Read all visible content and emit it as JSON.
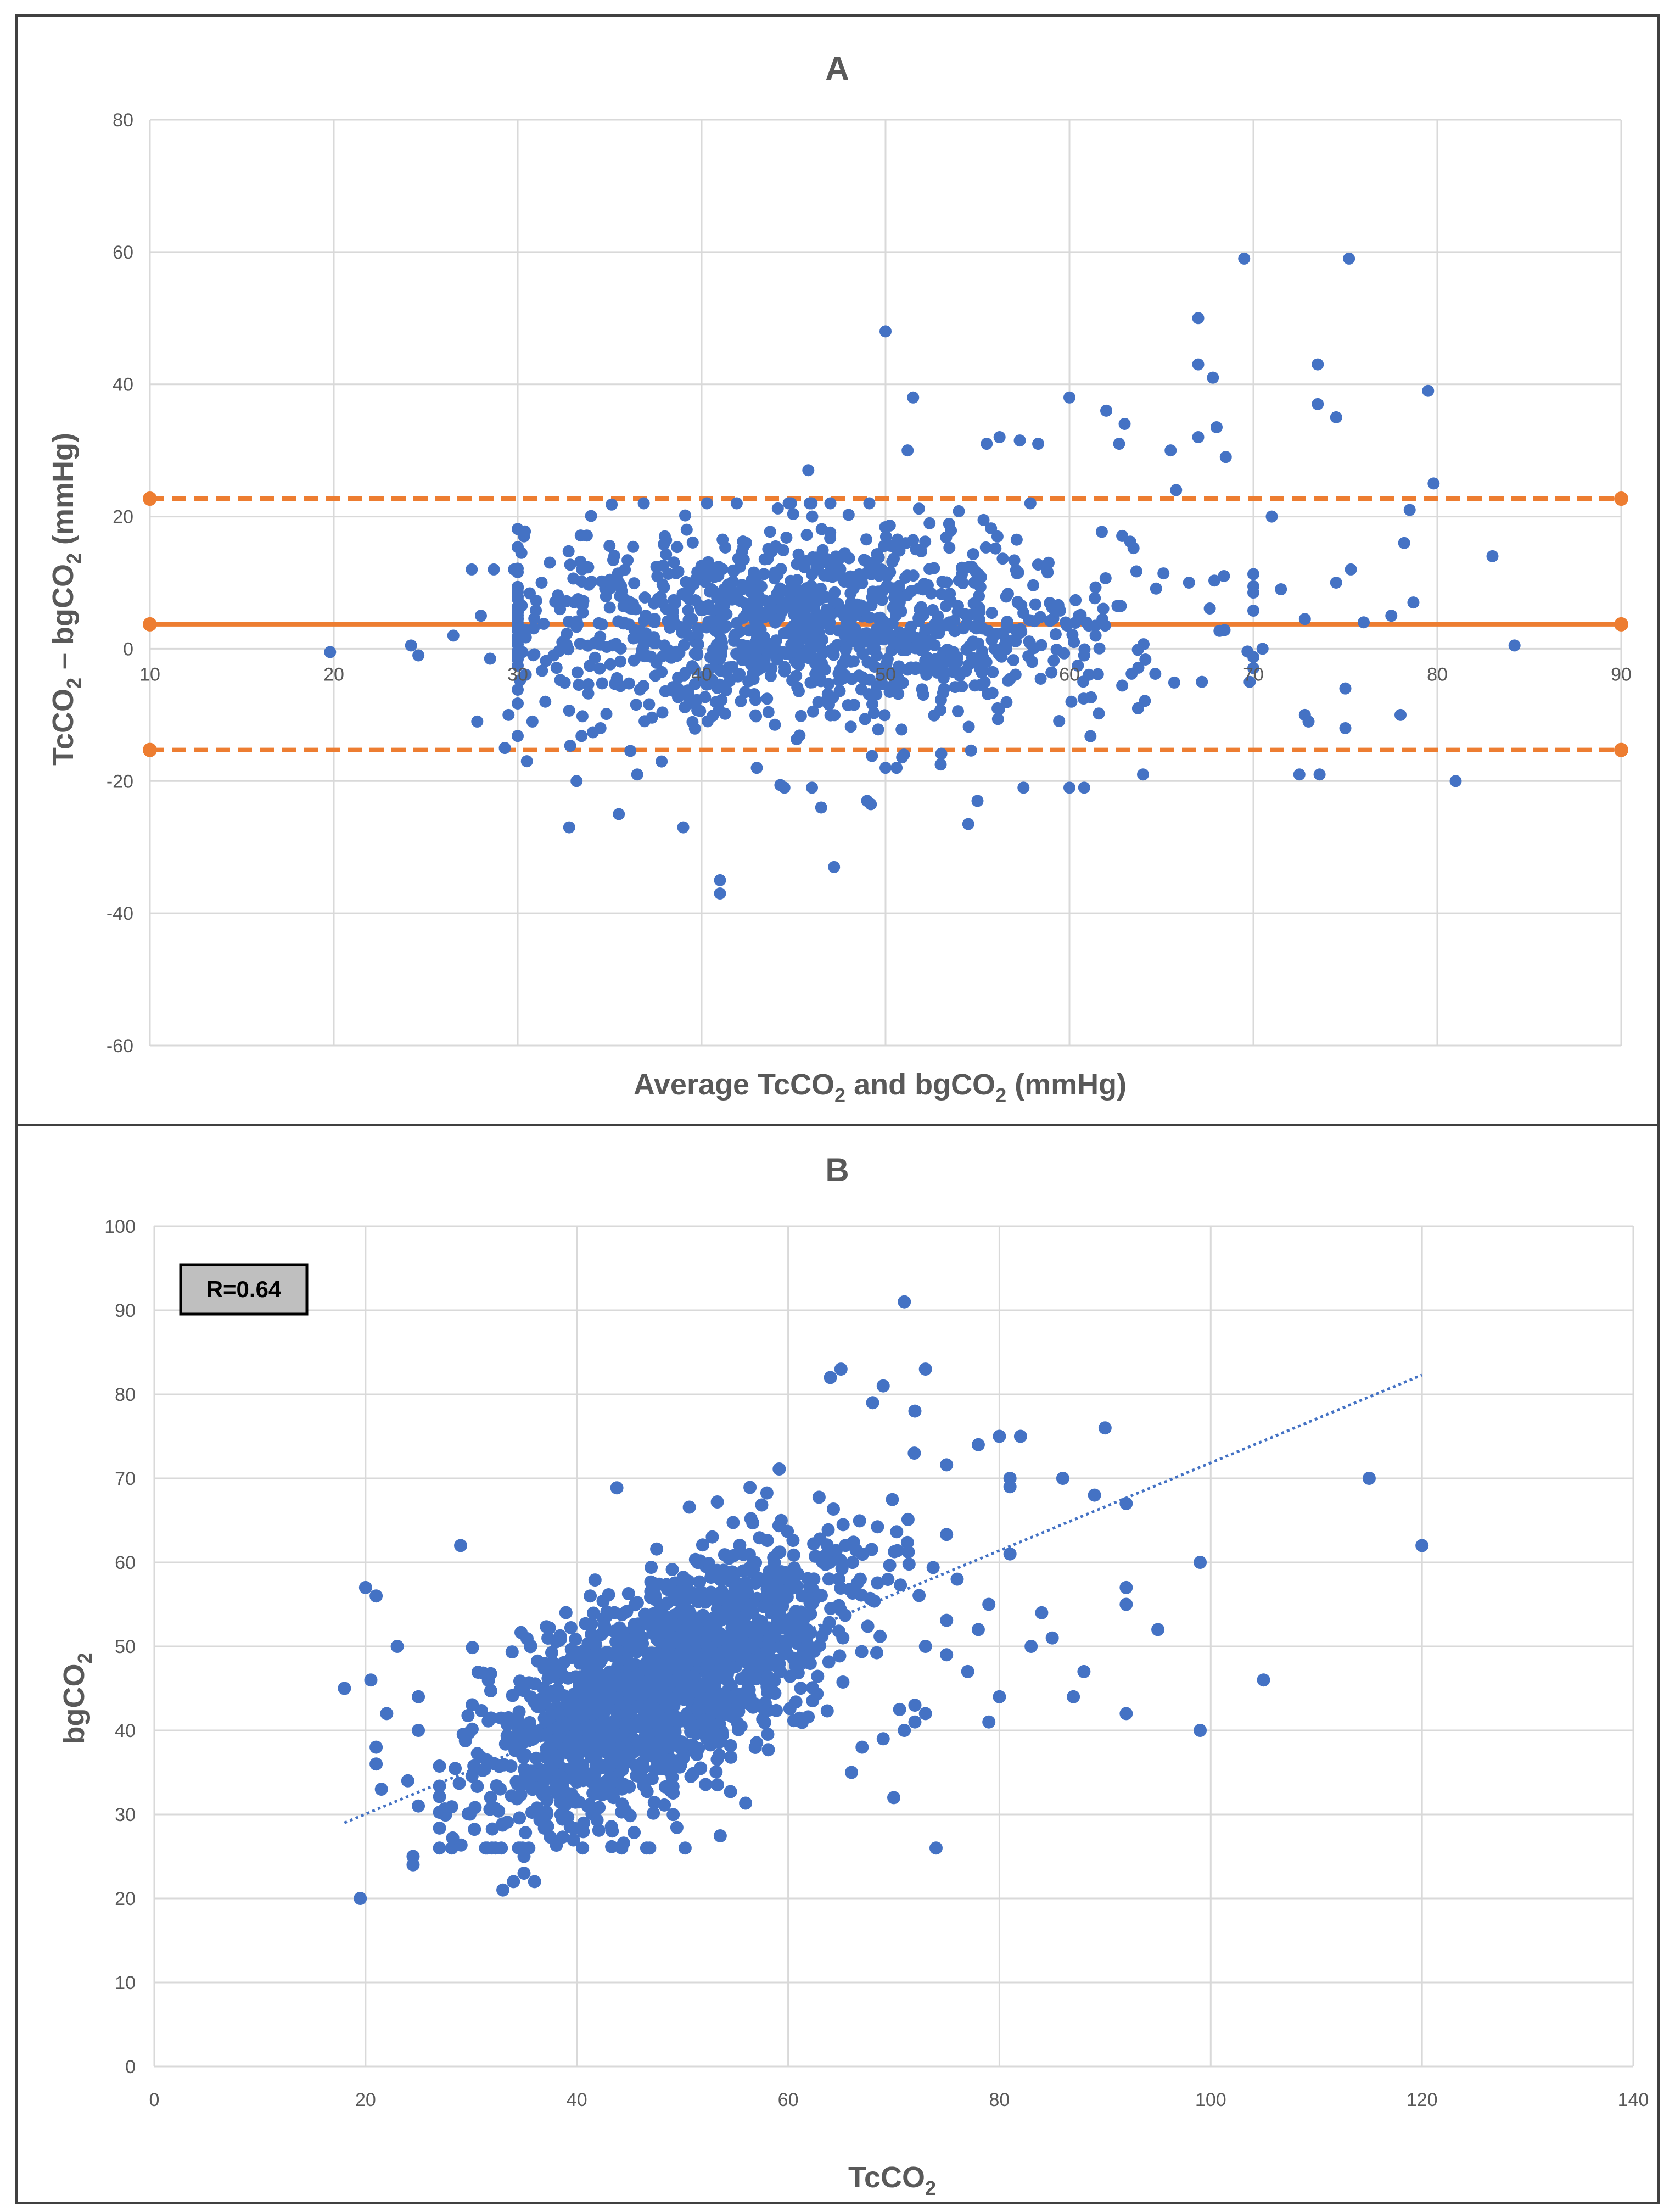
{
  "colors": {
    "points": "#4472C4",
    "limits": "#ED7D31",
    "grid": "#D9D9D9",
    "text": "#595959",
    "rbox": "#BFBFBF"
  },
  "chart_data": [
    {
      "panel": "A",
      "type": "scatter",
      "title": "A",
      "chart_kind": "Bland-Altman",
      "xlabel_parts": [
        "Average TcCO",
        "2",
        " and bgCO",
        "2",
        " (mmHg)"
      ],
      "ylabel_parts": [
        "TcCO",
        "2",
        " – bgCO",
        "2",
        " (mmHg)"
      ],
      "xlim": [
        10,
        90
      ],
      "ylim": [
        -60,
        80
      ],
      "x_ticks": [
        10,
        20,
        30,
        40,
        50,
        60,
        70,
        80,
        90
      ],
      "y_ticks": [
        -60,
        -40,
        -20,
        0,
        20,
        40,
        60,
        80
      ],
      "x_tick_labels": [
        "10",
        "20",
        "30",
        "40",
        "50",
        "60",
        "70",
        "80",
        "90"
      ],
      "y_tick_labels": [
        "-60",
        "-40",
        "-20",
        "0",
        "20",
        "40",
        "60",
        "80"
      ],
      "grid": true,
      "mean_bias": 3.7,
      "upper_loa": 22.7,
      "lower_loa": -15.3,
      "outliers": [
        [
          19.8,
          -0.5
        ],
        [
          24.2,
          0.5
        ],
        [
          24.6,
          -1
        ],
        [
          26.5,
          2
        ],
        [
          27.5,
          12
        ],
        [
          27.8,
          -11
        ],
        [
          28,
          5
        ],
        [
          28.5,
          -1.5
        ],
        [
          28.7,
          12
        ],
        [
          29.3,
          -15
        ],
        [
          29.5,
          -10
        ],
        [
          29.8,
          12
        ],
        [
          30.2,
          14.5
        ],
        [
          30.5,
          -17
        ],
        [
          30.8,
          -11
        ],
        [
          31.3,
          10
        ],
        [
          31.5,
          -8
        ],
        [
          32.3,
          6
        ],
        [
          32.8,
          -27
        ],
        [
          33.2,
          -20
        ],
        [
          33.5,
          12
        ],
        [
          34.5,
          -12
        ],
        [
          35,
          10
        ],
        [
          35.5,
          -25
        ],
        [
          36.5,
          -19
        ],
        [
          38,
          17
        ],
        [
          39,
          -27
        ],
        [
          41,
          -35
        ],
        [
          41,
          -37
        ],
        [
          43,
          -18
        ],
        [
          44.5,
          -21
        ],
        [
          45.8,
          27
        ],
        [
          46,
          -21
        ],
        [
          46.5,
          -24
        ],
        [
          47,
          22
        ],
        [
          47.2,
          -33
        ],
        [
          49,
          -23
        ],
        [
          49.2,
          -23.5
        ],
        [
          50,
          -18
        ],
        [
          51,
          -16
        ],
        [
          53,
          -17.5
        ],
        [
          54.5,
          -26.5
        ],
        [
          55,
          -23
        ],
        [
          57.5,
          -21
        ],
        [
          60,
          -21
        ],
        [
          60.8,
          -21
        ],
        [
          50.6,
          -18
        ],
        [
          50,
          48
        ],
        [
          51.2,
          30
        ],
        [
          51.5,
          38
        ],
        [
          55.5,
          31
        ],
        [
          56.2,
          32
        ],
        [
          57.3,
          31.5
        ],
        [
          58.3,
          31
        ],
        [
          60,
          38
        ],
        [
          62,
          36
        ],
        [
          62.7,
          31
        ],
        [
          63,
          34
        ],
        [
          64,
          -19
        ],
        [
          65.5,
          30
        ],
        [
          67,
          32
        ],
        [
          67,
          50
        ],
        [
          67,
          43
        ],
        [
          67.8,
          41
        ],
        [
          68,
          33.5
        ],
        [
          68.5,
          29
        ],
        [
          69.5,
          59
        ],
        [
          70,
          8.5
        ],
        [
          71,
          20
        ],
        [
          71.5,
          9
        ],
        [
          72.5,
          -19
        ],
        [
          72.8,
          -10
        ],
        [
          73,
          -11
        ],
        [
          73.5,
          43
        ],
        [
          73.5,
          37
        ],
        [
          73.6,
          -19
        ],
        [
          74.5,
          35
        ],
        [
          75.2,
          59
        ],
        [
          75,
          -6
        ],
        [
          75,
          -12
        ],
        [
          75.3,
          12
        ],
        [
          76,
          4
        ],
        [
          77.5,
          5
        ],
        [
          78,
          -10
        ],
        [
          78.2,
          16
        ],
        [
          78.5,
          21
        ],
        [
          78.7,
          7
        ],
        [
          79.5,
          39
        ],
        [
          79.8,
          25
        ],
        [
          81,
          -20
        ],
        [
          83,
          14
        ],
        [
          84.2,
          0.5
        ],
        [
          65.8,
          24
        ],
        [
          66.5,
          10
        ],
        [
          67.2,
          -5
        ],
        [
          68.4,
          11
        ],
        [
          69.8,
          -5
        ],
        [
          70.5,
          0
        ],
        [
          72.8,
          4.5
        ],
        [
          74.5,
          10
        ]
      ],
      "cloud": {
        "n": 1150,
        "x_mean": 46,
        "x_sd": 8.5,
        "y_mean": 3.7,
        "y_sd": 7.4,
        "x_range": [
          30,
          70
        ]
      }
    },
    {
      "panel": "B",
      "type": "scatter",
      "title": "B",
      "xlabel_parts": [
        "TcCO",
        "2"
      ],
      "ylabel_parts": [
        "bgCO",
        "2"
      ],
      "xlim": [
        0,
        140
      ],
      "ylim": [
        0,
        100
      ],
      "x_ticks": [
        0,
        20,
        40,
        60,
        80,
        100,
        120,
        140
      ],
      "y_ticks": [
        0,
        10,
        20,
        30,
        40,
        50,
        60,
        70,
        80,
        90,
        100
      ],
      "x_tick_labels": [
        "0",
        "20",
        "40",
        "60",
        "80",
        "100",
        "120",
        "140"
      ],
      "y_tick_labels": [
        "0",
        "10",
        "20",
        "30",
        "40",
        "50",
        "60",
        "70",
        "80",
        "90",
        "100"
      ],
      "grid": true,
      "annotation": "R=0.64",
      "trendline": {
        "style": "dotted",
        "x": [
          18,
          120
        ],
        "y": [
          29,
          82.3
        ]
      },
      "outliers": [
        [
          18,
          45
        ],
        [
          19.5,
          20
        ],
        [
          20,
          57
        ],
        [
          20.5,
          46
        ],
        [
          21,
          36
        ],
        [
          21,
          38
        ],
        [
          21,
          56
        ],
        [
          21.5,
          33
        ],
        [
          22,
          42
        ],
        [
          23,
          50
        ],
        [
          24,
          34
        ],
        [
          24.5,
          25
        ],
        [
          24.5,
          24
        ],
        [
          25,
          31
        ],
        [
          25,
          44
        ],
        [
          25,
          40
        ],
        [
          29,
          62
        ],
        [
          33,
          21
        ],
        [
          34,
          22
        ],
        [
          35,
          25
        ],
        [
          35,
          23
        ],
        [
          36,
          22
        ],
        [
          71,
          91
        ],
        [
          64,
          82
        ],
        [
          65,
          83
        ],
        [
          69,
          81
        ],
        [
          73,
          83
        ],
        [
          72,
          78
        ],
        [
          68,
          79
        ],
        [
          78,
          74
        ],
        [
          80,
          75
        ],
        [
          82,
          75
        ],
        [
          81,
          69
        ],
        [
          81,
          70
        ],
        [
          86,
          70
        ],
        [
          89,
          68
        ],
        [
          90,
          76
        ],
        [
          92,
          67
        ],
        [
          92,
          55
        ],
        [
          92,
          57
        ],
        [
          92,
          42
        ],
        [
          95,
          52
        ],
        [
          99,
          60
        ],
        [
          99,
          40
        ],
        [
          105,
          46
        ],
        [
          115,
          70
        ],
        [
          120,
          62
        ],
        [
          74,
          26
        ],
        [
          70,
          32
        ],
        [
          67,
          38
        ],
        [
          71,
          40
        ],
        [
          72,
          43
        ],
        [
          79,
          41
        ],
        [
          80,
          44
        ],
        [
          84,
          54
        ],
        [
          85,
          51
        ],
        [
          87,
          44
        ],
        [
          88,
          47
        ],
        [
          83,
          50
        ],
        [
          78,
          52
        ],
        [
          81,
          61
        ],
        [
          76,
          58
        ],
        [
          79,
          55
        ],
        [
          77,
          47
        ],
        [
          75,
          49
        ],
        [
          73,
          42
        ],
        [
          72,
          41
        ],
        [
          69,
          39
        ],
        [
          66,
          35
        ],
        [
          73,
          50
        ]
      ],
      "cloud": {
        "n": 1700,
        "x_mean": 48,
        "x_sd": 8.5,
        "y_mean": 45,
        "y_sd": 8.5,
        "corr": 0.66,
        "x_range": [
          27,
          75
        ],
        "y_range": [
          26,
          73
        ]
      }
    }
  ]
}
